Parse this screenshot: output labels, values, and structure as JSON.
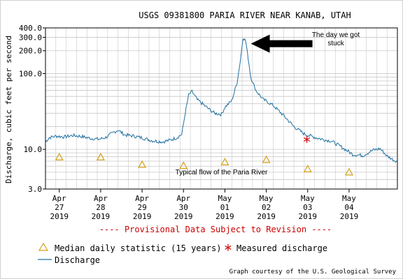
{
  "chart_data": {
    "type": "line",
    "title": "USGS 09381800 PARIA RIVER NEAR KANAB, UTAH",
    "ylabel": "Discharge, cubic feet per second",
    "y_scale": "log",
    "ylim": [
      3,
      400
    ],
    "y_ticks": [
      {
        "value": 3,
        "label": "3.0"
      },
      {
        "value": 10,
        "label": "10.0"
      },
      {
        "value": 100,
        "label": "100.0"
      },
      {
        "value": 200,
        "label": "200.0"
      },
      {
        "value": 300,
        "label": "300.0"
      },
      {
        "value": 400,
        "label": "400.0"
      }
    ],
    "xlim": [
      "2019-04-26T16:00",
      "2019-05-05T04:00"
    ],
    "x_ticks": [
      {
        "date": "2019-04-27",
        "label": [
          "Apr",
          "27",
          "2019"
        ]
      },
      {
        "date": "2019-04-28",
        "label": [
          "Apr",
          "28",
          "2019"
        ]
      },
      {
        "date": "2019-04-29",
        "label": [
          "Apr",
          "29",
          "2019"
        ]
      },
      {
        "date": "2019-04-30",
        "label": [
          "Apr",
          "30",
          "2019"
        ]
      },
      {
        "date": "2019-05-01",
        "label": [
          "May",
          "01",
          "2019"
        ]
      },
      {
        "date": "2019-05-02",
        "label": [
          "May",
          "02",
          "2019"
        ]
      },
      {
        "date": "2019-05-03",
        "label": [
          "May",
          "03",
          "2019"
        ]
      },
      {
        "date": "2019-05-04",
        "label": [
          "May",
          "04",
          "2019"
        ]
      }
    ],
    "series": [
      {
        "name": "Discharge",
        "color": "#1f6f9f",
        "points": [
          [
            "2019-04-26T16:00",
            12.5
          ],
          [
            "2019-04-26T18:00",
            14.2
          ],
          [
            "2019-04-26T22:00",
            15.0
          ],
          [
            "2019-04-27T03:00",
            14.6
          ],
          [
            "2019-04-27T08:00",
            15.3
          ],
          [
            "2019-04-27T13:00",
            14.8
          ],
          [
            "2019-04-27T18:00",
            14.0
          ],
          [
            "2019-04-27T23:00",
            13.6
          ],
          [
            "2019-04-28T03:00",
            14.4
          ],
          [
            "2019-04-28T07:00",
            16.5
          ],
          [
            "2019-04-28T10:00",
            18.0
          ],
          [
            "2019-04-28T14:00",
            15.5
          ],
          [
            "2019-04-28T19:00",
            15.0
          ],
          [
            "2019-04-29T00:00",
            14.2
          ],
          [
            "2019-04-29T06:00",
            13.0
          ],
          [
            "2019-04-29T12:00",
            12.6
          ],
          [
            "2019-04-29T16:00",
            13.2
          ],
          [
            "2019-04-29T20:00",
            14.2
          ],
          [
            "2019-04-29T23:00",
            15.8
          ],
          [
            "2019-04-30T01:00",
            30.0
          ],
          [
            "2019-04-30T03:00",
            52.0
          ],
          [
            "2019-04-30T05:00",
            58.0
          ],
          [
            "2019-04-30T08:00",
            45.0
          ],
          [
            "2019-04-30T11:00",
            40.0
          ],
          [
            "2019-04-30T14:00",
            35.0
          ],
          [
            "2019-04-30T18:00",
            30.0
          ],
          [
            "2019-04-30T22:00",
            29.0
          ],
          [
            "2019-05-01T00:00",
            36.0
          ],
          [
            "2019-05-01T04:00",
            44.0
          ],
          [
            "2019-05-01T07:00",
            75.0
          ],
          [
            "2019-05-01T09:00",
            150.0
          ],
          [
            "2019-05-01T10:30",
            300.0
          ],
          [
            "2019-05-01T12:00",
            270.0
          ],
          [
            "2019-05-01T13:30",
            160.0
          ],
          [
            "2019-05-01T15:00",
            90.0
          ],
          [
            "2019-05-01T18:00",
            60.0
          ],
          [
            "2019-05-01T22:00",
            46.0
          ],
          [
            "2019-05-02T04:00",
            38.0
          ],
          [
            "2019-05-02T10:00",
            28.0
          ],
          [
            "2019-05-02T16:00",
            20.0
          ],
          [
            "2019-05-02T22:00",
            16.0
          ],
          [
            "2019-05-03T06:00",
            14.0
          ],
          [
            "2019-05-03T14:00",
            12.8
          ],
          [
            "2019-05-03T20:00",
            10.6
          ],
          [
            "2019-05-04T02:00",
            8.6
          ],
          [
            "2019-05-04T08:00",
            8.3
          ],
          [
            "2019-05-04T14:00",
            9.8
          ],
          [
            "2019-05-04T18:00",
            10.2
          ],
          [
            "2019-05-04T22:00",
            8.2
          ],
          [
            "2019-05-05T02:00",
            7.2
          ],
          [
            "2019-05-05T04:00",
            7.0
          ]
        ]
      }
    ],
    "median_daily": {
      "name": "Median daily statistic (15 years)",
      "color": "#d4a017",
      "points": [
        [
          "2019-04-27",
          7.9
        ],
        [
          "2019-04-28",
          7.9
        ],
        [
          "2019-04-29",
          6.3
        ],
        [
          "2019-04-30",
          6.1
        ],
        [
          "2019-05-01",
          6.8
        ],
        [
          "2019-05-02",
          7.3
        ],
        [
          "2019-05-03",
          5.5
        ],
        [
          "2019-05-04",
          5.0
        ]
      ]
    },
    "measured": {
      "name": "Measured discharge",
      "color": "#cc0000",
      "points": [
        [
          "2019-05-02T23:30",
          13.5
        ]
      ]
    },
    "grid": true,
    "annotations": [
      {
        "text": [
          "The day we got",
          "stuck"
        ],
        "target": [
          "2019-05-01T11:00",
          300
        ]
      },
      {
        "text": [
          "Typical flow of the Paria River"
        ],
        "target": [
          "2019-04-30T22:00",
          5.1
        ]
      }
    ],
    "provisional_note": "---- Provisional Data Subject to Revision ----",
    "legend": [
      {
        "marker": "triangle",
        "label": "Median daily statistic (15 years)"
      },
      {
        "marker": "asterisk",
        "label": "Measured discharge"
      },
      {
        "marker": "line",
        "label": "Discharge"
      }
    ],
    "credit": "Graph courtesy of the U.S. Geological Survey"
  },
  "colors": {
    "discharge": "#1f6f9f",
    "median": "#d4a017",
    "measured": "#cc0000",
    "provisional": "#cc0000",
    "grid": "#c8c8c8"
  }
}
